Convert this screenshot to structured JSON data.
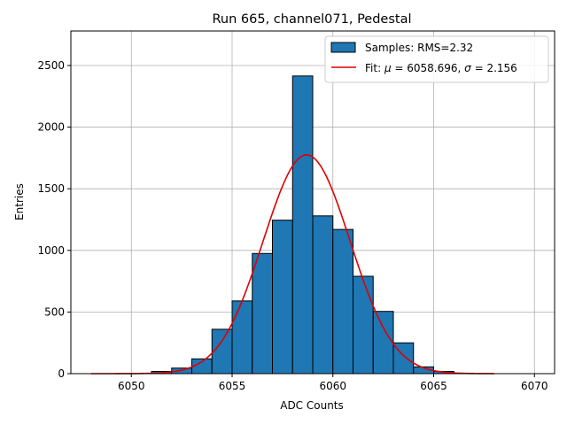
{
  "chart_data": {
    "type": "bar",
    "title": "Run 665, channel071, Pedestal",
    "xlabel": "ADC Counts",
    "ylabel": "Entries",
    "xlim": [
      6047,
      6071
    ],
    "ylim": [
      0,
      2780
    ],
    "x_ticks": [
      6050,
      6055,
      6060,
      6065,
      6070
    ],
    "y_ticks": [
      0,
      500,
      1000,
      1500,
      2000,
      2500
    ],
    "grid": true,
    "legend_placement": "top-right",
    "bin_width": 1,
    "bins": [
      {
        "x": 6051,
        "value": 18
      },
      {
        "x": 6052,
        "value": 45
      },
      {
        "x": 6053,
        "value": 120
      },
      {
        "x": 6054,
        "value": 360
      },
      {
        "x": 6055,
        "value": 590
      },
      {
        "x": 6056,
        "value": 975
      },
      {
        "x": 6057,
        "value": 1245
      },
      {
        "x": 6058,
        "value": 2415
      },
      {
        "x": 6059,
        "value": 1280
      },
      {
        "x": 6060,
        "value": 1170
      },
      {
        "x": 6061,
        "value": 790
      },
      {
        "x": 6062,
        "value": 505
      },
      {
        "x": 6063,
        "value": 250
      },
      {
        "x": 6064,
        "value": 55
      },
      {
        "x": 6065,
        "value": 18
      }
    ],
    "fit": {
      "mu": 6058.696,
      "sigma": 2.156,
      "amplitude": 1775,
      "x_range": [
        6048,
        6068
      ]
    },
    "series": [
      {
        "label": "Samples: RMS=2.32",
        "color": "#1f77b4"
      },
      {
        "label_prefix": "Fit: ",
        "mu_symbol": "μ",
        "mu_text": " = 6058.696, ",
        "sigma_symbol": "σ",
        "sigma_text": " = 2.156",
        "color": "#e00000"
      }
    ]
  }
}
